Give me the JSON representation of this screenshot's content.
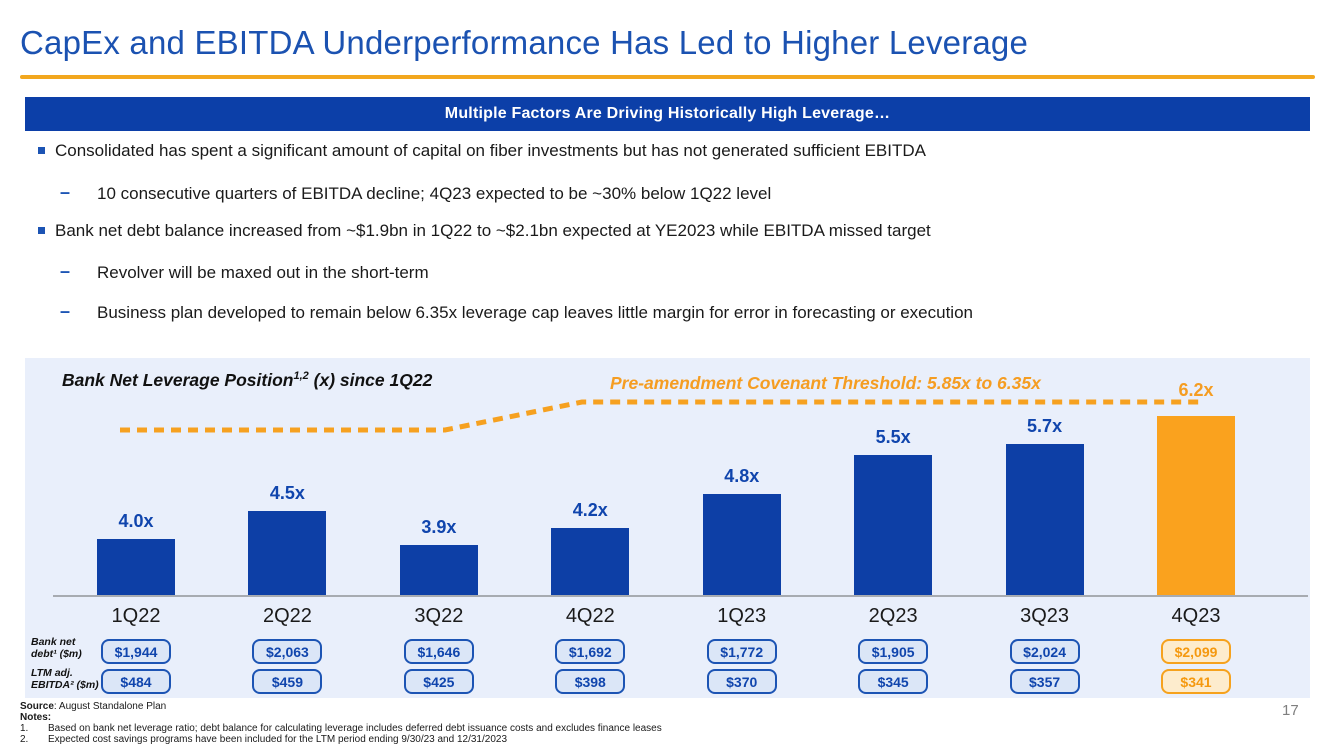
{
  "slide": {
    "title": "CapEx and EBITDA Underperformance Has Led to Higher Leverage",
    "banner": "Multiple Factors Are Driving Historically High Leverage…",
    "bullets": [
      {
        "level": 1,
        "text": "Consolidated has spent a significant amount of capital on fiber investments but has not generated sufficient EBITDA"
      },
      {
        "level": 2,
        "text": "10 consecutive quarters of EBITDA decline; 4Q23 expected to be ~30% below 1Q22 level"
      },
      {
        "level": 1,
        "text": "Bank net debt balance increased from ~$1.9bn in 1Q22 to ~$2.1bn expected at YE2023 while EBITDA missed target"
      },
      {
        "level": 2,
        "text": "Revolver will be maxed out in the short-term"
      },
      {
        "level": 2,
        "text": "Business plan developed to remain below 6.35x leverage cap leaves little margin for error in forecasting or execution"
      }
    ],
    "footer": {
      "source_label": "Source",
      "source_rest": ": August Standalone Plan",
      "notes_label": "Notes:",
      "notes": [
        {
          "num": "1.",
          "text": "Based on bank net leverage ratio; debt balance for calculating leverage includes deferred debt issuance costs and excludes finance leases"
        },
        {
          "num": "2.",
          "text": "Expected cost savings programs have been included for the LTM period ending 9/30/23 and 12/31/2023"
        }
      ]
    },
    "page_number": "17"
  },
  "chart_data": {
    "type": "bar",
    "title_main": "Bank Net Leverage Position",
    "title_sup": "1,2",
    "title_rest": " (x) since 1Q22",
    "threshold_label": "Pre-amendment Covenant Threshold: 5.85x to 6.35x",
    "threshold_range_x": [
      5.85,
      6.35
    ],
    "categories": [
      "1Q22",
      "2Q22",
      "3Q22",
      "4Q22",
      "1Q23",
      "2Q23",
      "3Q23",
      "4Q23"
    ],
    "values": [
      4.0,
      4.5,
      3.9,
      4.2,
      4.8,
      5.5,
      5.7,
      6.2
    ],
    "value_labels": [
      "4.0x",
      "4.5x",
      "3.9x",
      "4.2x",
      "4.8x",
      "5.5x",
      "5.7x",
      "6.2x"
    ],
    "highlight_index": 7,
    "bar_color": "#0d3fa6",
    "highlight_color": "#faa21e",
    "threshold_color": "#f6a120",
    "axis_baseline_value": 3.0,
    "grid": "off",
    "legend": "none",
    "rows": [
      {
        "label": [
          "Bank net",
          "debt¹ ($m)"
        ],
        "values": [
          "$1,944",
          "$2,063",
          "$1,646",
          "$1,692",
          "$1,772",
          "$1,905",
          "$2,024",
          "$2,099"
        ]
      },
      {
        "label": [
          "LTM adj.",
          "EBITDA² ($m)"
        ],
        "values": [
          "$484",
          "$459",
          "$425",
          "$398",
          "$370",
          "$345",
          "$357",
          "$341"
        ]
      }
    ]
  }
}
